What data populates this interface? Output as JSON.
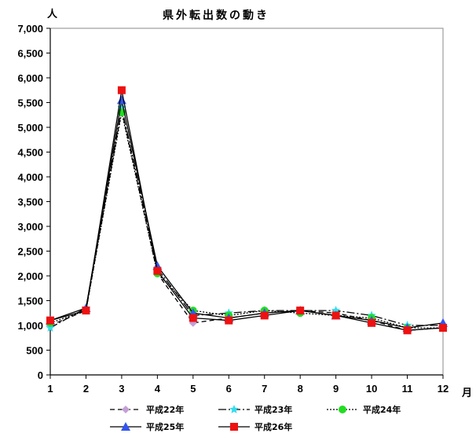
{
  "chart_data": {
    "type": "line",
    "title": "県外転出数の動き",
    "ylabel": "人",
    "xlabel": "月",
    "categories": [
      "1",
      "2",
      "3",
      "4",
      "5",
      "6",
      "7",
      "8",
      "9",
      "10",
      "11",
      "12"
    ],
    "ylim": [
      0,
      7000
    ],
    "ytick_step": 500,
    "ytick_labels": [
      "0",
      "500",
      "1,000",
      "1,500",
      "2,000",
      "2,500",
      "3,000",
      "3,500",
      "4,000",
      "4,500",
      "5,000",
      "5,500",
      "6,000",
      "6,500",
      "7,000"
    ],
    "grid": false,
    "legend_position": "bottom",
    "series": [
      {
        "name": "平成22年",
        "color": "#c49fd6",
        "marker": "diamond",
        "dash": "6,4",
        "values": [
          1000,
          1300,
          5350,
          2050,
          1050,
          1150,
          1250,
          1300,
          1250,
          1100,
          900,
          950
        ]
      },
      {
        "name": "平成23年",
        "color": "#33ddee",
        "marker": "star",
        "dash": "10,3,2,3",
        "values": [
          950,
          1350,
          5400,
          2150,
          1200,
          1250,
          1300,
          1300,
          1300,
          1200,
          1000,
          1000
        ]
      },
      {
        "name": "平成24年",
        "color": "#22dd22",
        "marker": "circle",
        "dash": "2,2",
        "values": [
          1050,
          1300,
          5300,
          2050,
          1300,
          1200,
          1300,
          1250,
          1200,
          1150,
          950,
          950
        ]
      },
      {
        "name": "平成25年",
        "color": "#3355ee",
        "marker": "triangle",
        "dash": "",
        "values": [
          1100,
          1350,
          5550,
          2200,
          1250,
          1150,
          1250,
          1300,
          1200,
          1100,
          950,
          1050
        ]
      },
      {
        "name": "平成26年",
        "color": "#ee1111",
        "marker": "square",
        "dash": "",
        "values": [
          1100,
          1300,
          5750,
          2100,
          1150,
          1100,
          1200,
          1300,
          1200,
          1050,
          900,
          950
        ]
      }
    ]
  }
}
